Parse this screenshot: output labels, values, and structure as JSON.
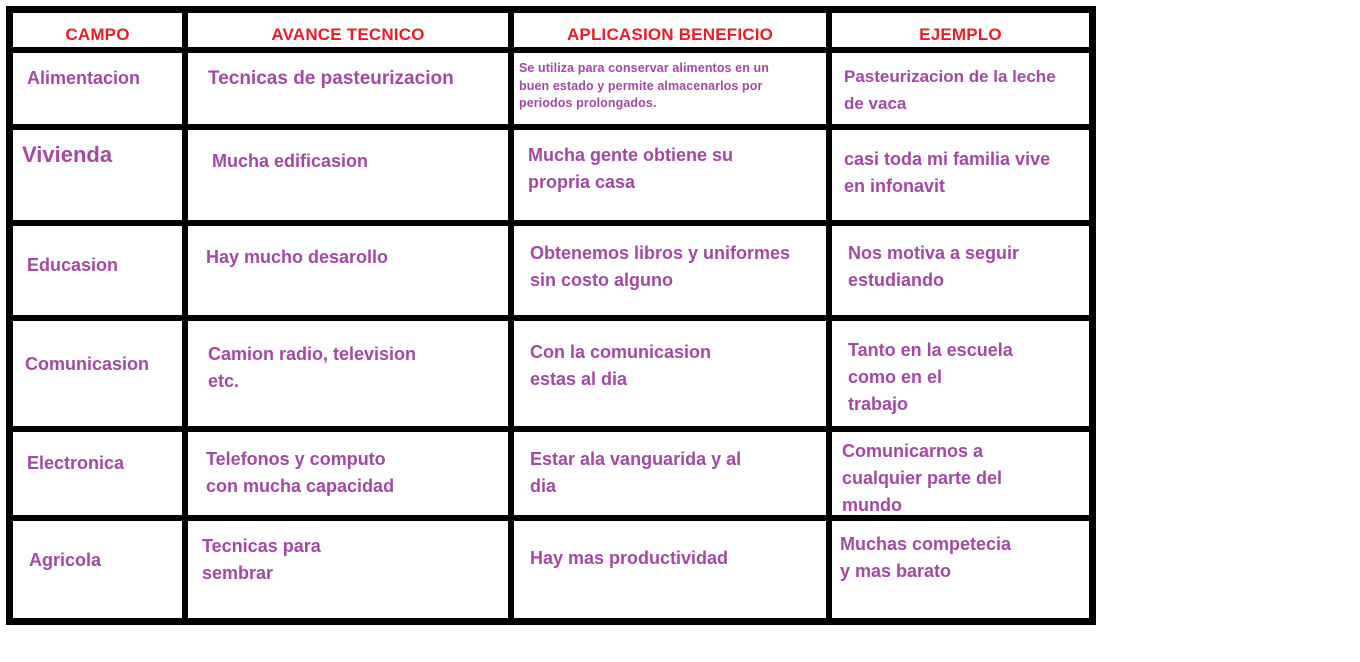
{
  "table": {
    "headers": [
      "CAMPO",
      "AVANCE TECNICO",
      "APLICASION BENEFICIO",
      "EJEMPLO"
    ],
    "rows": [
      {
        "campo": "Alimentacion",
        "avance": "Tecnicas de pasteurizacion",
        "aplicacion": "Se utiliza para conservar alimentos en un\nbuen estado y permite almacenarlos por\nperiodos prolongados.",
        "ejemplo": "Pasteurizacion de la leche\nde vaca"
      },
      {
        "campo": "Vivienda",
        "avance": "Mucha edificasion",
        "aplicacion": "Mucha gente obtiene su\npropria casa",
        "ejemplo": "casi toda mi familia vive\nen infonavit"
      },
      {
        "campo": "Educasion",
        "avance": "Hay mucho desarollo",
        "aplicacion": "Obtenemos libros y uniformes\nsin costo alguno",
        "ejemplo": "Nos motiva a seguir\nestudiando"
      },
      {
        "campo": "Comunicasion",
        "avance": "Camion radio, television\netc.",
        "aplicacion": "Con la comunicasion\nestas al dia",
        "ejemplo": "Tanto en la escuela\ncomo en el\ntrabajo"
      },
      {
        "campo": "Electronica",
        "avance": "Telefonos y computo\ncon mucha capacidad",
        "aplicacion": "Estar ala vanguarida y al\ndia",
        "ejemplo": "Comunicarnos a\ncualquier parte del\nmundo"
      },
      {
        "campo": "Agricola",
        "avance": "Tecnicas para\nsembrar",
        "aplicacion": "Hay mas productividad",
        "ejemplo": "Muchas competecia\ny mas barato"
      }
    ],
    "colors": {
      "header_text": "#ED1C24",
      "body_text": "#A349A4",
      "border": "#000000",
      "background": "#FFFFFF"
    }
  }
}
